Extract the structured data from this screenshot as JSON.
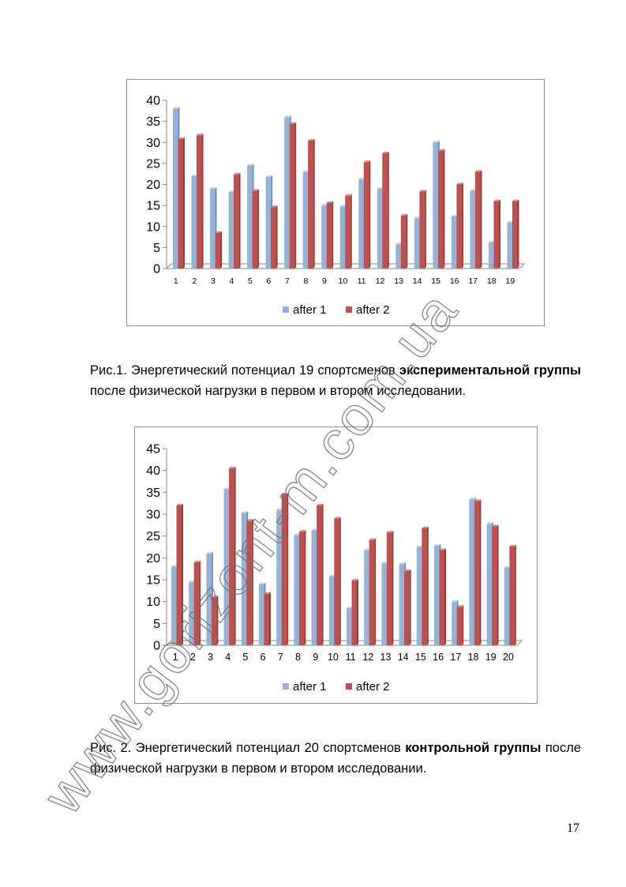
{
  "chart_data": [
    {
      "type": "bar",
      "categories": [
        "1",
        "2",
        "3",
        "4",
        "5",
        "6",
        "7",
        "8",
        "9",
        "10",
        "11",
        "12",
        "13",
        "14",
        "15",
        "16",
        "17",
        "18",
        "19"
      ],
      "series": [
        {
          "name": "after 1",
          "values": [
            38,
            22,
            19,
            18.2,
            24.5,
            21.8,
            36,
            23,
            15,
            14.8,
            21.2,
            19,
            5.8,
            12,
            30,
            12.4,
            18.5,
            6.2,
            11
          ]
        },
        {
          "name": "after 2",
          "values": [
            30.8,
            31.7,
            8.5,
            22.4,
            18.5,
            14.6,
            34.4,
            30.4,
            15.6,
            17.3,
            25.3,
            27.4,
            12.6,
            18.3,
            28,
            20,
            23,
            16,
            16
          ]
        }
      ],
      "ylim": [
        0,
        40
      ],
      "yticks": [
        0,
        5,
        10,
        15,
        20,
        25,
        30,
        35,
        40
      ],
      "legend": "bottom",
      "colors": [
        "#95b3d7",
        "#c0504d"
      ]
    },
    {
      "type": "bar",
      "categories": [
        "1",
        "2",
        "3",
        "4",
        "5",
        "6",
        "7",
        "8",
        "9",
        "10",
        "11",
        "12",
        "13",
        "14",
        "15",
        "16",
        "17",
        "18",
        "19",
        "20"
      ],
      "series": [
        {
          "name": "after 1",
          "values": [
            18,
            14.5,
            21,
            35.7,
            30.3,
            14,
            31,
            25.2,
            26.3,
            15.8,
            8.5,
            21.8,
            18.8,
            18.6,
            22.5,
            22.8,
            10,
            33.4,
            27.8,
            17.8
          ]
        },
        {
          "name": "after 2",
          "values": [
            32,
            19,
            11,
            40.5,
            28.5,
            11.8,
            34.5,
            26,
            32,
            29,
            14.8,
            24.1,
            25.8,
            17,
            26.8,
            21.8,
            8.8,
            33,
            27.2,
            22.6
          ]
        }
      ],
      "ylim": [
        0,
        45
      ],
      "yticks": [
        0,
        5,
        10,
        15,
        20,
        25,
        30,
        35,
        40,
        45
      ],
      "legend": "bottom",
      "colors": [
        "#95b3d7",
        "#c0504d"
      ]
    }
  ],
  "captions": {
    "fig1_prefix": "Рис.1. Энергетический потенциал 19 спортсменов ",
    "fig1_bold": "экспериментальной группы",
    "fig1_suffix": " после физической нагрузки в первом и втором исследовании.",
    "fig2_prefix": "Рис. 2. Энергетический потенциал 20 спортсменов ",
    "fig2_bold": "контрольной группы",
    "fig2_suffix": " после физической нагрузки в первом и втором исследовании."
  },
  "page_number": "17",
  "watermark": "www.gorizont-m.com.ua"
}
